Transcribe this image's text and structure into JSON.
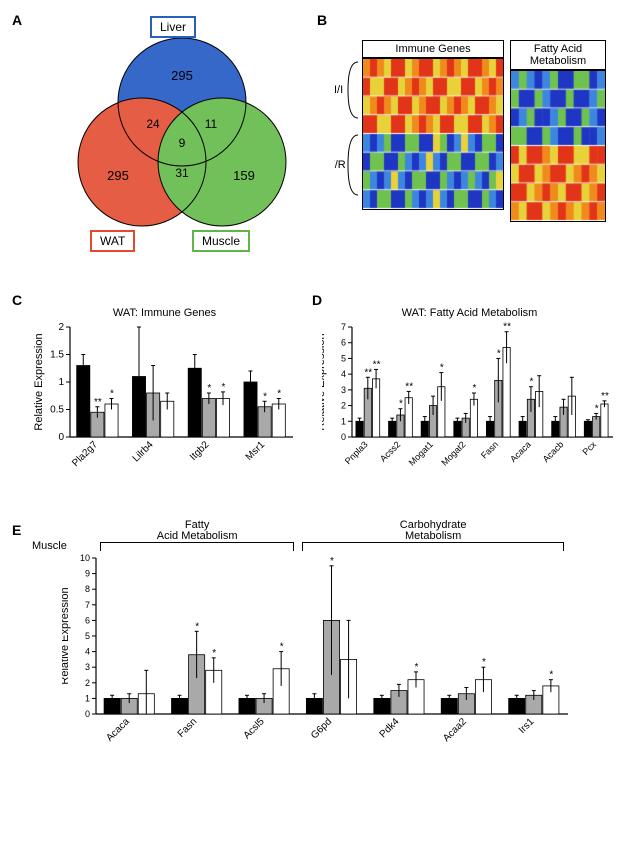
{
  "panelA": {
    "label": "A",
    "liver": {
      "name": "Liver",
      "count": 295,
      "color": "#2b5fbf",
      "fill": "#3668c9"
    },
    "wat": {
      "name": "WAT",
      "count": 295,
      "color": "#e2492f",
      "fill": "#e55d44"
    },
    "muscle": {
      "name": "Muscle",
      "count": 159,
      "color": "#5fb648",
      "fill": "#72c05a"
    },
    "overlap_liver_wat": 24,
    "overlap_liver_muscle": 11,
    "overlap_wat_muscle": 31,
    "overlap_all": 9
  },
  "panelB": {
    "label": "B",
    "left_title": "Immune Genes",
    "right_title": "Fatty Acid Metabolism",
    "row_group1": "I/I",
    "row_group2": "F/R",
    "heatmap_colors_low_to_high": [
      "#1f36c4",
      "#3d86e0",
      "#6fc24e",
      "#e7d23a",
      "#f08a1c",
      "#e23418"
    ],
    "left_cols": 20,
    "right_cols": 12,
    "rows": 8
  },
  "panelC": {
    "label": "C",
    "title": "WAT: Immune Genes",
    "ylabel": "Relative Expression",
    "ylim": [
      0,
      2.0
    ],
    "ytick_step": 0.5,
    "bar_colors": [
      "#000000",
      "#a9a9a9",
      "#ffffff"
    ],
    "categories": [
      "Pla2g7",
      "Lilrb4",
      "Itgb2",
      "Msr1"
    ],
    "series": [
      {
        "values": [
          1.3,
          0.45,
          0.6
        ],
        "err": [
          0.2,
          0.1,
          0.1
        ],
        "sig": [
          "",
          "**",
          "*"
        ]
      },
      {
        "values": [
          1.1,
          0.8,
          0.65
        ],
        "err": [
          0.9,
          0.5,
          0.15
        ],
        "sig": [
          "",
          "",
          ""
        ]
      },
      {
        "values": [
          1.25,
          0.7,
          0.7
        ],
        "err": [
          0.25,
          0.1,
          0.12
        ],
        "sig": [
          "",
          "*",
          "*"
        ]
      },
      {
        "values": [
          1.0,
          0.55,
          0.6
        ],
        "err": [
          0.2,
          0.1,
          0.1
        ],
        "sig": [
          "",
          "*",
          "*"
        ]
      }
    ]
  },
  "panelD": {
    "label": "D",
    "title": "WAT: Fatty Acid Metabolism",
    "ylabel": "Relative Expression",
    "ylim": [
      0,
      7
    ],
    "ytick_step": 1,
    "bar_colors": [
      "#000000",
      "#a9a9a9",
      "#ffffff"
    ],
    "categories": [
      "Pnpla3",
      "Acss2",
      "Mogat1",
      "Mogat2",
      "Fasn",
      "Acaca",
      "Acacb",
      "Pcx"
    ],
    "series": [
      {
        "values": [
          1.0,
          3.1,
          3.7
        ],
        "err": [
          0.2,
          0.7,
          0.6
        ],
        "sig": [
          "",
          "**",
          "**"
        ]
      },
      {
        "values": [
          1.0,
          1.4,
          2.5
        ],
        "err": [
          0.2,
          0.4,
          0.4
        ],
        "sig": [
          "",
          "*",
          "**"
        ]
      },
      {
        "values": [
          1.0,
          2.0,
          3.2
        ],
        "err": [
          0.3,
          0.6,
          0.9
        ],
        "sig": [
          "",
          "",
          "*"
        ]
      },
      {
        "values": [
          1.0,
          1.2,
          2.4
        ],
        "err": [
          0.2,
          0.3,
          0.4
        ],
        "sig": [
          "",
          "",
          "*"
        ]
      },
      {
        "values": [
          1.0,
          3.6,
          5.7
        ],
        "err": [
          0.3,
          1.4,
          1.0
        ],
        "sig": [
          "",
          "*",
          "**"
        ]
      },
      {
        "values": [
          1.0,
          2.4,
          2.9
        ],
        "err": [
          0.3,
          0.8,
          1.0
        ],
        "sig": [
          "",
          "*",
          ""
        ]
      },
      {
        "values": [
          1.0,
          1.9,
          2.6
        ],
        "err": [
          0.3,
          0.5,
          1.2
        ],
        "sig": [
          "",
          "",
          ""
        ]
      },
      {
        "values": [
          1.0,
          1.3,
          2.1
        ],
        "err": [
          0.1,
          0.2,
          0.2
        ],
        "sig": [
          "",
          "*",
          "**"
        ]
      }
    ]
  },
  "panelE": {
    "label": "E",
    "ylabel": "Relative Expression",
    "tissue_label": "Muscle",
    "left_bracket": "Fatty Acid Metabolism",
    "right_bracket": "Carbohydrate Metabolism",
    "ylim": [
      0,
      10
    ],
    "ytick_step": 1,
    "bar_colors": [
      "#000000",
      "#a9a9a9",
      "#ffffff"
    ],
    "categories": [
      "Acaca",
      "Fasn",
      "Acsl5",
      "G6pd",
      "Pdk4",
      "Acaa2",
      "Irs1"
    ],
    "left_cats": 3,
    "series": [
      {
        "values": [
          1.0,
          1.0,
          1.3
        ],
        "err": [
          0.2,
          0.3,
          1.5
        ],
        "sig": [
          "",
          "",
          ""
        ]
      },
      {
        "values": [
          1.0,
          3.8,
          2.8
        ],
        "err": [
          0.2,
          1.5,
          0.8
        ],
        "sig": [
          "",
          "*",
          "*"
        ]
      },
      {
        "values": [
          1.0,
          1.0,
          2.9
        ],
        "err": [
          0.2,
          0.3,
          1.1
        ],
        "sig": [
          "",
          "",
          "*"
        ]
      },
      {
        "values": [
          1.0,
          6.0,
          3.5
        ],
        "err": [
          0.3,
          3.5,
          2.5
        ],
        "sig": [
          "",
          "*",
          ""
        ]
      },
      {
        "values": [
          1.0,
          1.5,
          2.2
        ],
        "err": [
          0.2,
          0.4,
          0.5
        ],
        "sig": [
          "",
          "",
          "*"
        ]
      },
      {
        "values": [
          1.0,
          1.3,
          2.2
        ],
        "err": [
          0.2,
          0.4,
          0.8
        ],
        "sig": [
          "",
          "",
          "*"
        ]
      },
      {
        "values": [
          1.0,
          1.2,
          1.8
        ],
        "err": [
          0.2,
          0.3,
          0.4
        ],
        "sig": [
          "",
          "",
          "*"
        ]
      }
    ]
  }
}
